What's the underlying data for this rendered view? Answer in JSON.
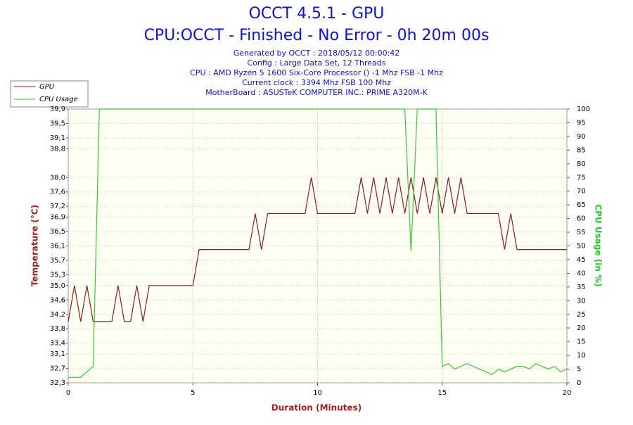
{
  "chart_data": {
    "type": "line",
    "title": "OCCT 4.5.1 - GPU",
    "subtitle": "CPU:OCCT - Finished - No Error - 0h 20m 00s",
    "info": [
      "Generated by OCCT : 2018/05/12 00:00:42",
      "Config : Large Data Set, 12 Threads",
      "CPU : AMD Ryzen 5 1600 Six-Core Processor () -1 Mhz FSB -1 Mhz",
      "Current clock : 3394 Mhz FSB 100 Mhz",
      "MotherBoard : ASUSTeK COMPUTER INC.: PRIME A320M-K"
    ],
    "x_label": "Duration (Minutes)",
    "y_label": "Temperature (°C)",
    "y2_label": "CPU Usage (in %)",
    "x": [
      0,
      0.25,
      0.5,
      0.75,
      1,
      1.25,
      1.5,
      1.75,
      2,
      2.25,
      2.5,
      2.75,
      3,
      3.25,
      3.5,
      3.75,
      4,
      4.25,
      4.5,
      4.75,
      5,
      5.25,
      5.5,
      5.75,
      6,
      6.25,
      6.5,
      6.75,
      7,
      7.25,
      7.5,
      7.75,
      8,
      8.25,
      8.5,
      8.75,
      9,
      9.25,
      9.5,
      9.75,
      10,
      10.25,
      10.5,
      10.75,
      11,
      11.25,
      11.5,
      11.75,
      12,
      12.25,
      12.5,
      12.75,
      13,
      13.25,
      13.5,
      13.75,
      14,
      14.25,
      14.5,
      14.75,
      15,
      15.25,
      15.5,
      15.75,
      16,
      16.25,
      16.5,
      16.75,
      17,
      17.25,
      17.5,
      17.75,
      18,
      18.25,
      18.5,
      18.75,
      19,
      19.25,
      19.5,
      19.75,
      20
    ],
    "series": [
      {
        "name": "GPU",
        "color": "#8b1a1a",
        "axis": "y",
        "values": [
          34,
          35,
          34,
          35,
          34,
          34,
          34,
          34,
          35,
          34,
          34,
          35,
          34,
          35,
          35,
          35,
          35,
          35,
          35,
          35,
          35,
          36,
          36,
          36,
          36,
          36,
          36,
          36,
          36,
          36,
          37,
          36,
          37,
          37,
          37,
          37,
          37,
          37,
          37,
          38,
          37,
          37,
          37,
          37,
          37,
          37,
          37,
          38,
          37,
          38,
          37,
          38,
          37,
          38,
          37,
          38,
          37,
          38,
          37,
          38,
          37,
          38,
          37,
          38,
          37,
          37,
          37,
          37,
          37,
          37,
          36,
          37,
          36,
          36,
          36,
          36,
          36,
          36,
          36,
          36,
          36
        ]
      },
      {
        "name": "CPU Usage",
        "color": "#33cc33",
        "axis": "y2",
        "values": [
          2,
          2,
          2,
          4,
          6,
          100,
          100,
          100,
          100,
          100,
          100,
          100,
          100,
          100,
          100,
          100,
          100,
          100,
          100,
          100,
          100,
          100,
          100,
          100,
          100,
          100,
          100,
          100,
          100,
          100,
          100,
          100,
          100,
          100,
          100,
          100,
          100,
          100,
          100,
          100,
          100,
          100,
          100,
          100,
          100,
          100,
          100,
          100,
          100,
          100,
          100,
          100,
          100,
          100,
          100,
          48,
          100,
          100,
          100,
          100,
          6,
          7,
          5,
          6,
          7,
          6,
          5,
          4,
          3,
          5,
          4,
          5,
          6,
          6,
          5,
          7,
          6,
          5,
          6,
          4,
          5
        ]
      }
    ],
    "xlim": [
      0,
      20
    ],
    "xticks": [
      0,
      5,
      10,
      15,
      20
    ],
    "ylim": [
      32.3,
      39.9
    ],
    "yticks": [
      {
        "value": 32.3,
        "label": "32,3"
      },
      {
        "value": 32.7,
        "label": "32,7"
      },
      {
        "value": 33.1,
        "label": "33,1"
      },
      {
        "value": 33.4,
        "label": "33,4"
      },
      {
        "value": 33.8,
        "label": "33,8"
      },
      {
        "value": 34.2,
        "label": "34,2"
      },
      {
        "value": 34.6,
        "label": "34,6"
      },
      {
        "value": 35.0,
        "label": "35,0"
      },
      {
        "value": 35.3,
        "label": "35,3"
      },
      {
        "value": 35.7,
        "label": "35,7"
      },
      {
        "value": 36.1,
        "label": "36,1"
      },
      {
        "value": 36.5,
        "label": "36,5"
      },
      {
        "value": 36.9,
        "label": "36,9"
      },
      {
        "value": 37.2,
        "label": "37,2"
      },
      {
        "value": 37.6,
        "label": "37,6"
      },
      {
        "value": 38.0,
        "label": "38,0"
      },
      {
        "value": 38.8,
        "label": "38,8"
      },
      {
        "value": 39.1,
        "label": "39,1"
      },
      {
        "value": 39.5,
        "label": "39,5"
      },
      {
        "value": 39.9,
        "label": "39,9"
      }
    ],
    "y2lim": [
      0,
      100
    ],
    "y2ticks": [
      0,
      5,
      10,
      15,
      20,
      25,
      30,
      35,
      40,
      45,
      50,
      55,
      60,
      65,
      70,
      75,
      80,
      85,
      90,
      95,
      100
    ],
    "grid": true,
    "legend": "top-left"
  }
}
